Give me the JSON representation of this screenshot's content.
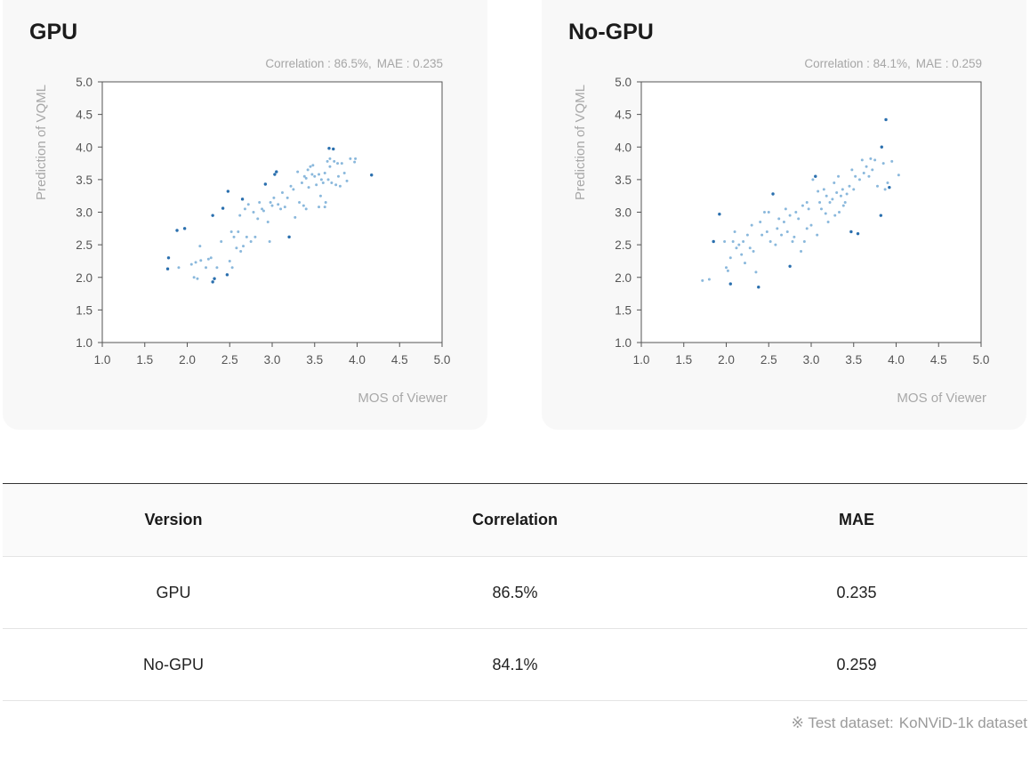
{
  "charts": [
    {
      "title": "GPU",
      "stats": {
        "corr_text": "Correlation : 86.5%,",
        "mae_text": "MAE : 0.235"
      }
    },
    {
      "title": "No-GPU",
      "stats": {
        "corr_text": "Correlation : 84.1%,",
        "mae_text": "MAE : 0.259"
      }
    }
  ],
  "table": {
    "headers": [
      "Version",
      "Correlation",
      "MAE"
    ],
    "rows": [
      [
        "GPU",
        "86.5%",
        "0.235"
      ],
      [
        "No-GPU",
        "84.1%",
        "0.259"
      ]
    ]
  },
  "footnote": {
    "prefix": "※ Test dataset:",
    "dataset": "KoNViD-1k dataset"
  },
  "colors": {
    "point_light": "#8ab8dc",
    "point_dark": "#2a6fae",
    "axis": "#555555"
  },
  "chart_data": [
    {
      "type": "scatter",
      "title": "GPU",
      "xlabel": "MOS of Viewer",
      "ylabel": "Prediction of VQML",
      "xlim": [
        1.0,
        5.0
      ],
      "ylim": [
        1.0,
        5.0
      ],
      "xticks": [
        "1.0",
        "1.5",
        "2.0",
        "2.5",
        "3.0",
        "3.5",
        "4.0",
        "4.5",
        "5.0"
      ],
      "yticks": [
        "1.0",
        "1.5",
        "2.0",
        "2.5",
        "3.0",
        "3.5",
        "4.0",
        "4.5",
        "5.0"
      ],
      "grid": false,
      "points": [
        [
          1.78,
          2.3,
          1
        ],
        [
          1.77,
          2.13,
          1
        ],
        [
          1.88,
          2.72,
          1
        ],
        [
          1.97,
          2.75,
          1
        ],
        [
          1.9,
          2.15,
          0
        ],
        [
          2.05,
          2.2,
          0
        ],
        [
          2.08,
          2.0,
          0
        ],
        [
          2.12,
          1.98,
          0
        ],
        [
          2.1,
          2.23,
          0
        ],
        [
          2.15,
          2.48,
          0
        ],
        [
          2.16,
          2.26,
          0
        ],
        [
          2.22,
          2.15,
          0
        ],
        [
          2.25,
          2.28,
          0
        ],
        [
          2.3,
          1.93,
          1
        ],
        [
          2.32,
          1.98,
          1
        ],
        [
          2.3,
          2.95,
          1
        ],
        [
          2.35,
          2.15,
          0
        ],
        [
          2.4,
          2.55,
          0
        ],
        [
          2.42,
          3.06,
          1
        ],
        [
          2.48,
          3.32,
          1
        ],
        [
          2.47,
          2.04,
          1
        ],
        [
          2.5,
          2.25,
          0
        ],
        [
          2.53,
          2.15,
          0
        ],
        [
          2.55,
          2.62,
          0
        ],
        [
          2.58,
          2.45,
          0
        ],
        [
          2.6,
          2.7,
          0
        ],
        [
          2.62,
          2.95,
          0
        ],
        [
          2.63,
          2.4,
          0
        ],
        [
          2.66,
          2.48,
          0
        ],
        [
          2.68,
          3.05,
          0
        ],
        [
          2.7,
          2.62,
          0
        ],
        [
          2.65,
          3.2,
          1
        ],
        [
          2.72,
          3.12,
          0
        ],
        [
          2.75,
          2.55,
          0
        ],
        [
          2.78,
          3.0,
          0
        ],
        [
          2.8,
          2.62,
          0
        ],
        [
          2.83,
          2.9,
          0
        ],
        [
          2.85,
          3.15,
          0
        ],
        [
          2.88,
          3.05,
          0
        ],
        [
          2.9,
          3.02,
          0
        ],
        [
          2.92,
          3.43,
          1
        ],
        [
          2.95,
          2.85,
          0
        ],
        [
          2.97,
          2.55,
          0
        ],
        [
          2.98,
          3.15,
          0
        ],
        [
          3.0,
          3.1,
          0
        ],
        [
          3.02,
          3.22,
          0
        ],
        [
          3.03,
          3.58,
          1
        ],
        [
          3.05,
          3.62,
          1
        ],
        [
          3.07,
          3.12,
          0
        ],
        [
          3.1,
          3.05,
          0
        ],
        [
          3.12,
          3.3,
          0
        ],
        [
          3.15,
          3.08,
          0
        ],
        [
          3.18,
          3.22,
          0
        ],
        [
          3.2,
          2.62,
          1
        ],
        [
          3.22,
          3.4,
          0
        ],
        [
          3.25,
          3.35,
          0
        ],
        [
          3.27,
          2.92,
          0
        ],
        [
          3.3,
          3.62,
          0
        ],
        [
          3.32,
          3.15,
          0
        ],
        [
          3.35,
          3.45,
          0
        ],
        [
          3.37,
          3.1,
          0
        ],
        [
          3.38,
          3.55,
          0
        ],
        [
          3.4,
          3.52,
          0
        ],
        [
          3.42,
          3.65,
          0
        ],
        [
          3.43,
          3.38,
          0
        ],
        [
          3.45,
          3.7,
          0
        ],
        [
          3.47,
          3.58,
          0
        ],
        [
          3.48,
          3.72,
          0
        ],
        [
          3.5,
          3.55,
          0
        ],
        [
          3.52,
          3.42,
          0
        ],
        [
          3.55,
          3.58,
          0
        ],
        [
          3.57,
          3.25,
          0
        ],
        [
          3.58,
          3.5,
          0
        ],
        [
          3.6,
          3.45,
          0
        ],
        [
          3.62,
          3.6,
          0
        ],
        [
          3.63,
          3.15,
          0
        ],
        [
          3.65,
          3.78,
          0
        ],
        [
          3.66,
          3.5,
          0
        ],
        [
          3.67,
          3.98,
          1
        ],
        [
          3.68,
          3.82,
          0
        ],
        [
          3.7,
          3.45,
          0
        ],
        [
          3.72,
          3.97,
          1
        ],
        [
          3.73,
          3.78,
          0
        ],
        [
          3.75,
          3.42,
          0
        ],
        [
          3.77,
          3.75,
          0
        ],
        [
          3.78,
          3.55,
          0
        ],
        [
          3.8,
          3.4,
          0
        ],
        [
          3.82,
          3.75,
          0
        ],
        [
          3.85,
          3.6,
          0
        ],
        [
          3.88,
          3.48,
          0
        ],
        [
          3.92,
          3.82,
          0
        ],
        [
          3.97,
          3.77,
          0
        ],
        [
          3.98,
          3.82,
          0
        ],
        [
          4.17,
          3.57,
          1
        ],
        [
          3.55,
          3.08,
          0
        ],
        [
          3.4,
          3.05,
          0
        ],
        [
          2.52,
          2.7,
          0
        ],
        [
          2.28,
          2.3,
          0
        ],
        [
          3.62,
          3.08,
          0
        ],
        [
          3.68,
          3.7,
          0
        ]
      ]
    },
    {
      "type": "scatter",
      "title": "No-GPU",
      "xlabel": "MOS of Viewer",
      "ylabel": "Prediction of VQML",
      "xlim": [
        1.0,
        5.0
      ],
      "ylim": [
        1.0,
        5.0
      ],
      "xticks": [
        "1.0",
        "1.5",
        "2.0",
        "2.5",
        "3.0",
        "3.5",
        "4.0",
        "4.5",
        "5.0"
      ],
      "yticks": [
        "1.0",
        "1.5",
        "2.0",
        "2.5",
        "3.0",
        "3.5",
        "4.0",
        "4.5",
        "5.0"
      ],
      "grid": false,
      "points": [
        [
          1.72,
          1.95,
          0
        ],
        [
          1.8,
          1.97,
          0
        ],
        [
          1.85,
          2.55,
          1
        ],
        [
          1.92,
          2.97,
          1
        ],
        [
          1.98,
          2.55,
          0
        ],
        [
          2.0,
          2.15,
          0
        ],
        [
          2.02,
          2.1,
          0
        ],
        [
          2.05,
          2.3,
          0
        ],
        [
          2.05,
          1.9,
          1
        ],
        [
          2.08,
          2.55,
          0
        ],
        [
          2.1,
          2.7,
          0
        ],
        [
          2.12,
          2.45,
          0
        ],
        [
          2.15,
          2.5,
          0
        ],
        [
          2.18,
          2.35,
          0
        ],
        [
          2.2,
          2.55,
          0
        ],
        [
          2.22,
          2.22,
          0
        ],
        [
          2.25,
          2.65,
          0
        ],
        [
          2.28,
          2.45,
          0
        ],
        [
          2.3,
          2.8,
          0
        ],
        [
          2.32,
          2.4,
          0
        ],
        [
          2.35,
          2.08,
          0
        ],
        [
          2.38,
          1.85,
          1
        ],
        [
          2.4,
          2.85,
          0
        ],
        [
          2.42,
          2.65,
          0
        ],
        [
          2.45,
          3.0,
          0
        ],
        [
          2.48,
          2.7,
          0
        ],
        [
          2.5,
          3.0,
          0
        ],
        [
          2.52,
          2.55,
          0
        ],
        [
          2.55,
          3.28,
          1
        ],
        [
          2.58,
          2.5,
          0
        ],
        [
          2.6,
          2.75,
          0
        ],
        [
          2.62,
          2.9,
          0
        ],
        [
          2.65,
          2.65,
          0
        ],
        [
          2.68,
          2.85,
          0
        ],
        [
          2.7,
          3.05,
          0
        ],
        [
          2.72,
          2.7,
          0
        ],
        [
          2.75,
          2.17,
          1
        ],
        [
          2.75,
          2.95,
          0
        ],
        [
          2.78,
          2.55,
          0
        ],
        [
          2.8,
          2.62,
          0
        ],
        [
          2.82,
          3.0,
          0
        ],
        [
          2.85,
          2.9,
          0
        ],
        [
          2.88,
          2.4,
          0
        ],
        [
          2.9,
          3.1,
          0
        ],
        [
          2.92,
          2.55,
          0
        ],
        [
          2.95,
          2.75,
          0
        ],
        [
          2.97,
          3.05,
          0
        ],
        [
          3.0,
          2.8,
          0
        ],
        [
          3.02,
          3.5,
          0
        ],
        [
          3.05,
          3.55,
          1
        ],
        [
          3.07,
          2.65,
          0
        ],
        [
          3.1,
          3.15,
          0
        ],
        [
          3.12,
          3.05,
          0
        ],
        [
          3.15,
          3.35,
          0
        ],
        [
          3.17,
          2.98,
          0
        ],
        [
          3.18,
          3.25,
          0
        ],
        [
          3.2,
          2.85,
          0
        ],
        [
          3.22,
          3.15,
          0
        ],
        [
          3.25,
          3.2,
          0
        ],
        [
          3.27,
          3.45,
          0
        ],
        [
          3.28,
          2.95,
          0
        ],
        [
          3.3,
          3.3,
          0
        ],
        [
          3.32,
          3.55,
          0
        ],
        [
          3.33,
          3.0,
          0
        ],
        [
          3.35,
          3.25,
          0
        ],
        [
          3.37,
          3.35,
          0
        ],
        [
          3.4,
          3.15,
          0
        ],
        [
          3.42,
          3.28,
          0
        ],
        [
          3.45,
          3.4,
          0
        ],
        [
          3.47,
          2.7,
          1
        ],
        [
          3.48,
          3.65,
          0
        ],
        [
          3.5,
          3.35,
          0
        ],
        [
          3.52,
          3.55,
          0
        ],
        [
          3.55,
          2.67,
          1
        ],
        [
          3.57,
          3.5,
          0
        ],
        [
          3.6,
          3.8,
          0
        ],
        [
          3.62,
          3.6,
          0
        ],
        [
          3.65,
          3.7,
          0
        ],
        [
          3.68,
          3.55,
          0
        ],
        [
          3.7,
          3.82,
          0
        ],
        [
          3.72,
          3.65,
          0
        ],
        [
          3.75,
          3.8,
          0
        ],
        [
          3.78,
          3.4,
          0
        ],
        [
          3.82,
          2.95,
          1
        ],
        [
          3.83,
          4.0,
          1
        ],
        [
          3.85,
          3.75,
          0
        ],
        [
          3.87,
          3.35,
          0
        ],
        [
          3.88,
          4.42,
          1
        ],
        [
          3.9,
          3.45,
          0
        ],
        [
          3.92,
          3.38,
          1
        ],
        [
          3.95,
          3.78,
          0
        ],
        [
          4.03,
          3.57,
          0
        ],
        [
          3.38,
          3.1,
          0
        ],
        [
          3.08,
          3.32,
          0
        ],
        [
          2.95,
          3.15,
          0
        ]
      ]
    }
  ]
}
